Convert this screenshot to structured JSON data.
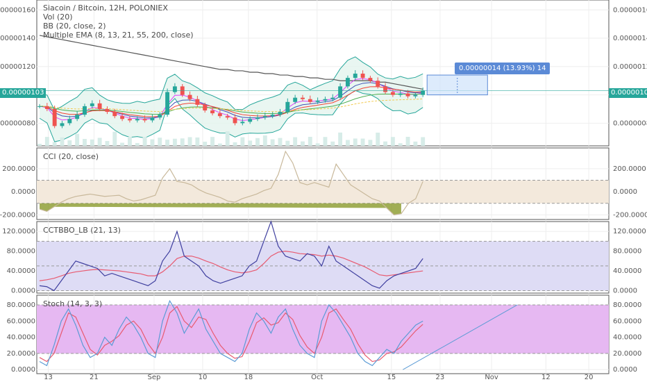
{
  "header": {
    "main_title": "Siacoin / Bitcoin, 12H, POLONIEX",
    "studies": [
      "Vol (20)",
      "BB (20, close, 2)",
      "Multiple EMA (8, 13, 21, 55, 200, close)"
    ]
  },
  "price_tag": "0.00000103",
  "measure_label": "0.00000014 (13.93%) 14",
  "panes": {
    "cci_title": "CCI (20, close)",
    "cctbbo_title": "CCTBBO_LB (21, 13)",
    "stoch_title": "Stoch (14, 3, 3)"
  },
  "colors": {
    "up": "#26a69a",
    "down": "#ef5350",
    "bb": "#26a69a",
    "ema200": "#555555",
    "cci_line": "#c8b89a",
    "cci_band": "#f3e9dc",
    "cct_band": "#dedcf5",
    "cct_line": "#3f3f9f",
    "cct_signal": "#e85a70",
    "stoch_band": "#e6b8f2",
    "stoch_k": "#5b9bd5",
    "stoch_d": "#e85a70",
    "price_tag": "#26a69a",
    "measure": "#5b8ad6"
  },
  "chart_data": [
    {
      "type": "candlestick",
      "title": "Siacoin / Bitcoin, 12H, POLONIEX",
      "ylim": [
        6.4e-07,
        1.67e-06
      ],
      "y_ticks": [
        "0.00000160",
        "0.00000140",
        "0.00000120",
        "0.00000100",
        "0.00000080"
      ],
      "y_tick_values": [
        1.6e-06,
        1.4e-06,
        1.2e-06,
        1e-06,
        8e-07
      ],
      "x_ticks": [
        "13",
        "21",
        "Sep",
        "10",
        "18",
        "Oct",
        "15",
        "23",
        "Nov",
        "12",
        "20"
      ],
      "last_price": 1.03e-06,
      "close_series": [
        9.2e-07,
        9e-07,
        7.8e-07,
        8e-07,
        8.3e-07,
        8.6e-07,
        9.2e-07,
        9.4e-07,
        9e-07,
        8.8e-07,
        8.5e-07,
        8.3e-07,
        8.2e-07,
        8.3e-07,
        8.2e-07,
        8.4e-07,
        8.6e-07,
        1.02e-06,
        1.06e-06,
        1e-06,
        9.7e-07,
        9.3e-07,
        8.9e-07,
        8.7e-07,
        8.5e-07,
        8.4e-07,
        8e-07,
        8.1e-07,
        8.3e-07,
        8.4e-07,
        8.5e-07,
        8.6e-07,
        8.8e-07,
        9.5e-07,
        9.8e-07,
        9.7e-07,
        9.5e-07,
        9.6e-07,
        9.7e-07,
        9.8e-07,
        1.06e-06,
        1.12e-06,
        1.15e-06,
        1.12e-06,
        1.1e-06,
        1.06e-06,
        1.02e-06,
        1e-06,
        1.01e-06,
        9.9e-07,
        1e-06,
        1.03e-06
      ],
      "ema200": [
        1.42e-06,
        1.41e-06,
        1.4e-06,
        1.39e-06,
        1.38e-06,
        1.37e-06,
        1.36e-06,
        1.35e-06,
        1.34e-06,
        1.33e-06,
        1.32e-06,
        1.31e-06,
        1.3e-06,
        1.29e-06,
        1.28e-06,
        1.27e-06,
        1.26e-06,
        1.25e-06,
        1.24e-06,
        1.23e-06,
        1.22e-06,
        1.21e-06,
        1.2e-06,
        1.19e-06,
        1.18e-06,
        1.18e-06,
        1.17e-06,
        1.17e-06,
        1.16e-06,
        1.16e-06,
        1.15e-06,
        1.15e-06,
        1.14e-06,
        1.14e-06,
        1.13e-06,
        1.13e-06,
        1.12e-06,
        1.12e-06,
        1.11e-06,
        1.11e-06,
        1.1e-06,
        1.1e-06,
        1.1e-06,
        1.1e-06,
        1.1e-06,
        1.09e-06,
        1.09e-06,
        1.08e-06,
        1.07e-06,
        1.06e-06,
        1.05e-06,
        1.04e-06
      ],
      "measure": {
        "from": 1e-06,
        "to": 1.14e-06,
        "change": "0.00000014",
        "percent": "13.93%",
        "bars": 14
      }
    },
    {
      "type": "line",
      "title": "CCI (20, close)",
      "ylim": [
        -240,
        380
      ],
      "y_ticks": [
        "200.0000",
        "0.0000",
        "-200.0000"
      ],
      "y_tick_values": [
        200,
        0,
        -200
      ],
      "band": [
        -100,
        100
      ],
      "values": [
        -150,
        -170,
        -130,
        -90,
        -60,
        -40,
        -30,
        -20,
        -30,
        -40,
        -35,
        -30,
        -60,
        -80,
        -70,
        -50,
        -30,
        120,
        200,
        90,
        80,
        60,
        20,
        -10,
        -30,
        -50,
        -80,
        -90,
        -60,
        -40,
        -20,
        10,
        30,
        150,
        350,
        250,
        80,
        60,
        80,
        60,
        40,
        240,
        150,
        60,
        20,
        -20,
        -60,
        -80,
        -140,
        -200,
        -190,
        -100,
        -60,
        90
      ]
    },
    {
      "type": "line",
      "title": "CCTBBO_LB (21, 13)",
      "ylim": [
        -5,
        140
      ],
      "y_ticks": [
        "120.0000",
        "80.0000",
        "40.0000",
        "0.0000"
      ],
      "y_tick_values": [
        120,
        80,
        40,
        0
      ],
      "band": [
        0,
        100
      ],
      "midline": 50,
      "series": [
        {
          "values": [
            10,
            8,
            0,
            20,
            40,
            60,
            55,
            50,
            45,
            30,
            35,
            30,
            25,
            20,
            15,
            10,
            20,
            60,
            80,
            120,
            70,
            60,
            50,
            30,
            20,
            15,
            20,
            25,
            30,
            50,
            60,
            100,
            140,
            90,
            70,
            65,
            60,
            75,
            70,
            50,
            90,
            60,
            50,
            40,
            30,
            20,
            10,
            5,
            20,
            30,
            35,
            40,
            45,
            65
          ]
        },
        {
          "values": [
            20,
            22,
            25,
            30,
            35,
            38,
            40,
            42,
            43,
            42,
            41,
            40,
            38,
            36,
            34,
            30,
            30,
            38,
            50,
            65,
            70,
            70,
            66,
            60,
            55,
            48,
            42,
            38,
            36,
            38,
            42,
            55,
            70,
            78,
            80,
            78,
            75,
            74,
            73,
            70,
            72,
            70,
            66,
            60,
            54,
            48,
            40,
            32,
            30,
            32,
            34,
            36,
            38,
            40
          ]
        }
      ]
    },
    {
      "type": "line",
      "title": "Stoch (14, 3, 3)",
      "ylim": [
        -5,
        92
      ],
      "y_ticks": [
        "80.0000",
        "60.0000",
        "40.0000",
        "20.0000",
        "0.0000"
      ],
      "y_tick_values": [
        80,
        60,
        40,
        20,
        0
      ],
      "band": [
        20,
        80
      ],
      "series": [
        {
          "values": [
            10,
            5,
            30,
            60,
            75,
            55,
            30,
            15,
            20,
            40,
            30,
            50,
            65,
            55,
            40,
            20,
            15,
            60,
            85,
            70,
            45,
            60,
            75,
            50,
            35,
            20,
            15,
            10,
            20,
            50,
            70,
            60,
            45,
            65,
            75,
            50,
            30,
            20,
            15,
            60,
            80,
            70,
            55,
            40,
            20,
            10,
            5,
            15,
            25,
            20,
            35,
            45,
            55,
            60
          ]
        },
        {
          "values": [
            15,
            10,
            20,
            45,
            70,
            65,
            45,
            25,
            18,
            30,
            35,
            42,
            55,
            60,
            50,
            32,
            20,
            40,
            70,
            78,
            60,
            52,
            65,
            62,
            45,
            30,
            20,
            14,
            16,
            35,
            58,
            64,
            55,
            58,
            70,
            62,
            42,
            28,
            20,
            40,
            70,
            75,
            62,
            50,
            32,
            18,
            10,
            12,
            20,
            22,
            28,
            38,
            48,
            56
          ]
        }
      ],
      "trendline": {
        "from": [
          0.73,
          0
        ],
        "to": [
          0.99,
          80
        ]
      }
    }
  ]
}
